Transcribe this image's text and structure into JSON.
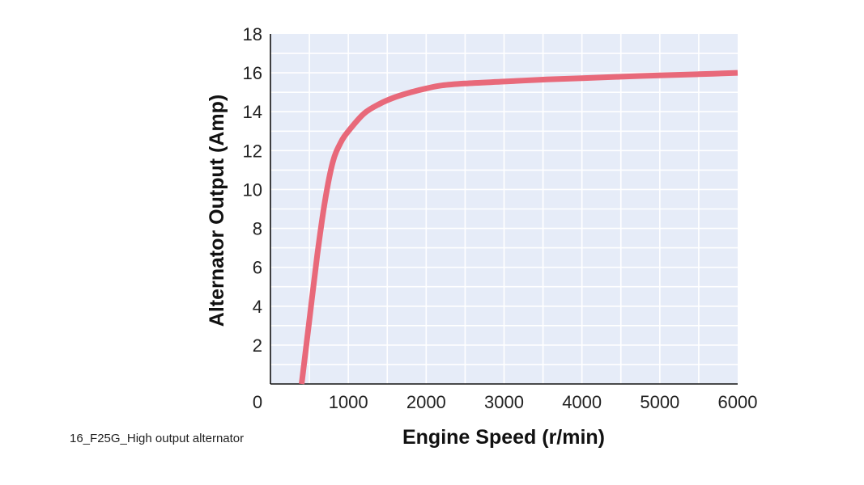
{
  "caption": "16_F25G_High output alternator",
  "colors": {
    "plot_background": "#e6ecf8",
    "grid": "#ffffff",
    "axis": "#111111",
    "series": "#e8697a"
  },
  "chart_data": {
    "type": "line",
    "title": "",
    "xlabel": "Engine Speed (r/min)",
    "ylabel": "Alternator Output (Amp)",
    "xlim": [
      0,
      6000
    ],
    "ylim": [
      0,
      18
    ],
    "xticks": [
      0,
      1000,
      2000,
      3000,
      4000,
      5000,
      6000
    ],
    "yticks": [
      2,
      4,
      6,
      8,
      10,
      12,
      14,
      16,
      18
    ],
    "origin_label": "0",
    "grid": true,
    "legend": "none",
    "series": [
      {
        "x": [
          400,
          500,
          600,
          700,
          800,
          900,
          1000,
          1200,
          1400,
          1600,
          1800,
          2000,
          2200,
          2500,
          3000,
          3500,
          4000,
          4500,
          5000,
          5500,
          6000
        ],
        "y": [
          0,
          3.3,
          6.6,
          9.4,
          11.4,
          12.4,
          13.0,
          13.9,
          14.4,
          14.75,
          15.0,
          15.2,
          15.35,
          15.45,
          15.55,
          15.65,
          15.72,
          15.8,
          15.87,
          15.93,
          16.0
        ]
      }
    ]
  }
}
